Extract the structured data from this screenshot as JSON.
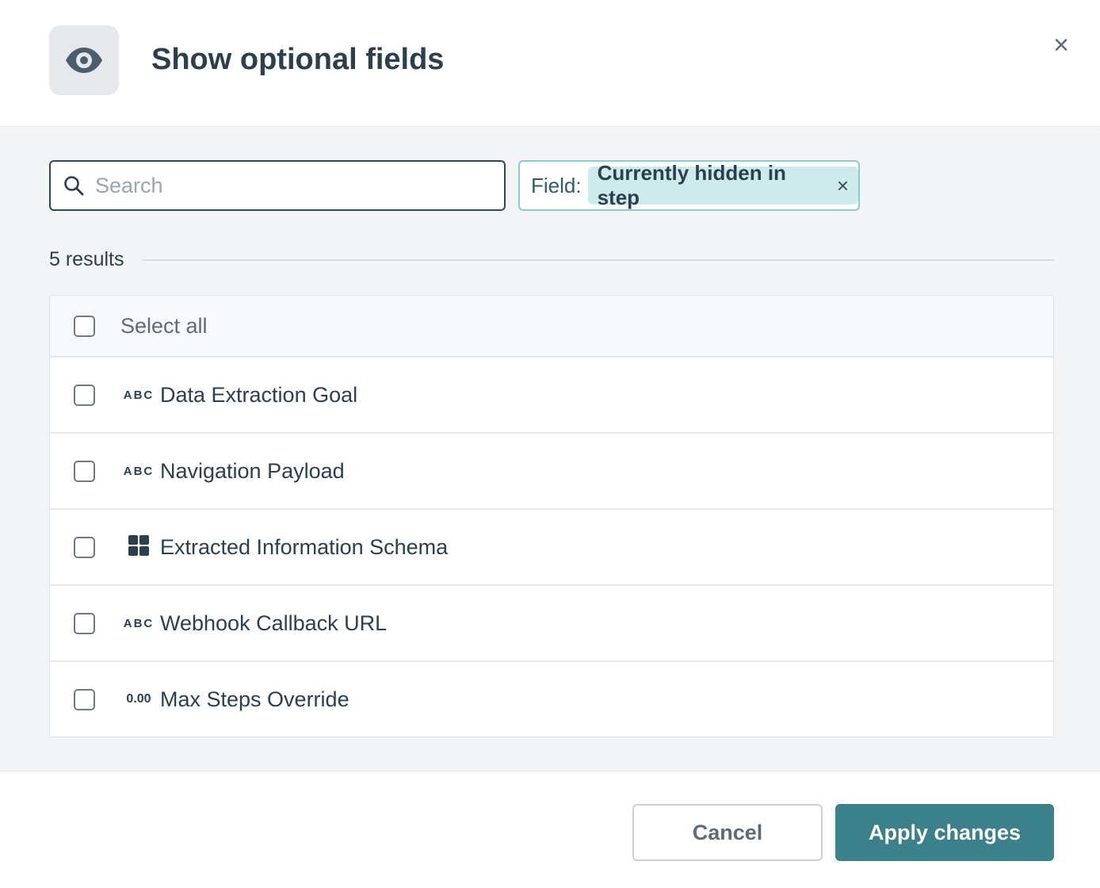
{
  "dialog": {
    "title": "Show optional fields",
    "icon": "eye-icon",
    "close_icon": "×"
  },
  "search": {
    "placeholder": "Search",
    "value": ""
  },
  "filter": {
    "label": "Field:",
    "chip": "Currently hidden in step",
    "chip_remove": "×"
  },
  "results": {
    "count_label": "5 results"
  },
  "list": {
    "select_all": "Select all",
    "items": [
      {
        "type": "ABC",
        "type_icon": "text-type-icon",
        "label": "Data Extraction Goal",
        "checked": false
      },
      {
        "type": "ABC",
        "type_icon": "text-type-icon",
        "label": "Navigation Payload",
        "checked": false
      },
      {
        "type": "",
        "type_icon": "grid-type-icon",
        "label": "Extracted Information Schema",
        "checked": false
      },
      {
        "type": "ABC",
        "type_icon": "text-type-icon",
        "label": "Webhook Callback URL",
        "checked": false
      },
      {
        "type": "0.00",
        "type_icon": "number-type-icon",
        "label": "Max Steps Override",
        "checked": false
      }
    ]
  },
  "footer": {
    "cancel": "Cancel",
    "apply": "Apply changes"
  },
  "colors": {
    "primary": "#3b808a",
    "chip_bg": "#cdebeb",
    "text": "#2b3f4d"
  }
}
